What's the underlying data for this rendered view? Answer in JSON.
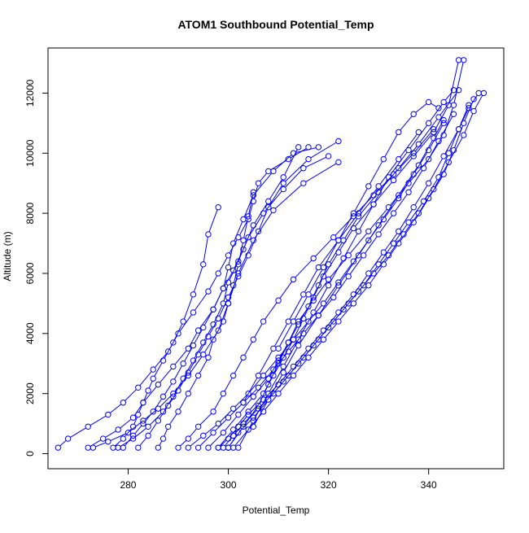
{
  "chart_data": {
    "type": "line",
    "title": "ATOM1 Southbound Potential_Temp",
    "xlabel": "Potential_Temp",
    "ylabel": "Altitude (m)",
    "xlim": [
      264,
      355
    ],
    "ylim": [
      -500,
      13500
    ],
    "x_ticks": [
      280,
      300,
      320,
      340
    ],
    "y_ticks": [
      0,
      2000,
      4000,
      6000,
      8000,
      10000,
      12000
    ],
    "grid": false,
    "legend": "none",
    "marker": "open-circle",
    "color": "#0000ff",
    "series": [
      {
        "x": [
          266,
          268,
          272,
          276,
          279,
          282,
          285,
          288,
          290,
          293,
          296,
          298,
          300,
          302,
          304,
          305,
          306,
          308,
          312,
          316
        ],
        "y": [
          200,
          500,
          900,
          1300,
          1700,
          2200,
          2800,
          3400,
          4000,
          4700,
          5400,
          6000,
          6600,
          7200,
          7800,
          8400,
          9000,
          9400,
          9800,
          10200
        ]
      },
      {
        "x": [
          272,
          275,
          278,
          281,
          283,
          286,
          289,
          292,
          294,
          297,
          299,
          301,
          303,
          305,
          308,
          311,
          314
        ],
        "y": [
          200,
          500,
          800,
          1200,
          1700,
          2300,
          2900,
          3500,
          4100,
          4800,
          5500,
          6100,
          6800,
          7600,
          8400,
          9200,
          10200
        ]
      },
      {
        "x": [
          277,
          279,
          281,
          282,
          283,
          284,
          285,
          287,
          289,
          291,
          293,
          295,
          296,
          298
        ],
        "y": [
          200,
          500,
          900,
          1300,
          1700,
          2100,
          2500,
          3100,
          3700,
          4400,
          5300,
          6300,
          7300,
          8200
        ]
      },
      {
        "x": [
          279,
          281,
          283,
          285,
          287,
          289,
          291,
          293,
          295,
          297,
          299,
          300,
          301,
          303,
          305,
          309,
          313,
          318
        ],
        "y": [
          200,
          600,
          1000,
          1400,
          1900,
          2400,
          3000,
          3600,
          4200,
          4800,
          5500,
          6200,
          7000,
          7800,
          8600,
          9400,
          10000,
          10200
        ]
      },
      {
        "x": [
          282,
          284,
          286,
          288,
          290,
          292,
          294,
          296,
          298,
          300,
          302,
          304,
          306,
          308,
          311,
          316,
          322
        ],
        "y": [
          200,
          600,
          1100,
          1600,
          2100,
          2700,
          3300,
          3900,
          4500,
          5200,
          5900,
          6600,
          7400,
          8200,
          9000,
          9800,
          10400
        ]
      },
      {
        "x": [
          278,
          281,
          284,
          287,
          289,
          291,
          293,
          295,
          297,
          299,
          300,
          302,
          304,
          307,
          311,
          315,
          320
        ],
        "y": [
          200,
          500,
          900,
          1400,
          1900,
          2500,
          3100,
          3700,
          4300,
          5000,
          5700,
          6400,
          7200,
          8000,
          8800,
          9500,
          9900
        ]
      },
      {
        "x": [
          286,
          287,
          288,
          290,
          292,
          294,
          296,
          297,
          299,
          300,
          301,
          302,
          303,
          304,
          305
        ],
        "y": [
          200,
          500,
          900,
          1400,
          2000,
          2600,
          3200,
          3800,
          4400,
          5000,
          5600,
          6300,
          7100,
          7900,
          8700
        ]
      },
      {
        "x": [
          273,
          276,
          280,
          283,
          286,
          289,
          292,
          295,
          298,
          300,
          302,
          305,
          309,
          315,
          322
        ],
        "y": [
          200,
          400,
          700,
          1100,
          1500,
          2000,
          2600,
          3300,
          4100,
          5000,
          6000,
          7100,
          8100,
          9000,
          9700
        ]
      },
      {
        "x": [
          290,
          292,
          294,
          297,
          299,
          301,
          303,
          305,
          307,
          310,
          313,
          317,
          321,
          325,
          329,
          333,
          337,
          341
        ],
        "y": [
          200,
          500,
          900,
          1400,
          2000,
          2600,
          3200,
          3800,
          4400,
          5100,
          5800,
          6500,
          7200,
          7900,
          8600,
          9300,
          10000,
          10800
        ]
      },
      {
        "x": [
          292,
          295,
          298,
          301,
          304,
          307,
          310,
          313,
          316,
          319,
          322,
          325,
          328,
          331,
          334,
          337,
          340,
          343
        ],
        "y": [
          200,
          600,
          1000,
          1500,
          2000,
          2600,
          3200,
          3800,
          4400,
          5000,
          5700,
          6400,
          7100,
          7800,
          8500,
          9300,
          10100,
          11000
        ]
      },
      {
        "x": [
          294,
          297,
          300,
          303,
          306,
          309,
          312,
          315,
          318,
          321,
          324,
          327,
          330,
          333,
          336,
          339,
          342,
          345
        ],
        "y": [
          200,
          700,
          1200,
          1700,
          2200,
          2800,
          3400,
          4000,
          4600,
          5200,
          5900,
          6600,
          7300,
          8000,
          8700,
          9500,
          10400,
          11300
        ]
      },
      {
        "x": [
          298,
          300,
          302,
          304,
          307,
          310,
          313,
          316,
          319,
          322,
          325,
          328,
          331,
          334,
          337,
          340,
          343,
          346,
          348
        ],
        "y": [
          200,
          500,
          900,
          1300,
          1800,
          2300,
          2900,
          3500,
          4100,
          4700,
          5300,
          6000,
          6700,
          7400,
          8200,
          9000,
          9900,
          10800,
          11600
        ]
      },
      {
        "x": [
          299,
          301,
          303,
          306,
          309,
          312,
          315,
          318,
          321,
          324,
          327,
          330,
          333,
          336,
          339,
          342,
          344,
          346,
          348,
          350
        ],
        "y": [
          200,
          600,
          1000,
          1500,
          2000,
          2600,
          3200,
          3800,
          4400,
          5000,
          5600,
          6300,
          7000,
          7700,
          8400,
          9200,
          10000,
          10800,
          11500,
          12000
        ]
      },
      {
        "x": [
          300,
          302,
          305,
          308,
          311,
          314,
          317,
          320,
          323,
          326,
          329,
          332,
          335,
          338,
          341,
          344,
          347,
          349,
          351
        ],
        "y": [
          200,
          700,
          1200,
          1800,
          2400,
          3000,
          3600,
          4200,
          4800,
          5400,
          6000,
          6600,
          7300,
          8000,
          8800,
          9700,
          10600,
          11400,
          12000
        ]
      },
      {
        "x": [
          301,
          304,
          307,
          310,
          313,
          316,
          319,
          322,
          325,
          328,
          331,
          334,
          337,
          340,
          343,
          345,
          347,
          349
        ],
        "y": [
          200,
          800,
          1400,
          2000,
          2600,
          3200,
          3800,
          4400,
          5000,
          5600,
          6300,
          7000,
          7700,
          8500,
          9300,
          10100,
          11000,
          11800
        ]
      },
      {
        "x": [
          296,
          299,
          302,
          305,
          308,
          310,
          312,
          314,
          316,
          318,
          320,
          323,
          326,
          330,
          334,
          338,
          342,
          346
        ],
        "y": [
          200,
          700,
          1300,
          1900,
          2500,
          3100,
          3700,
          4300,
          4900,
          5600,
          6300,
          7100,
          7900,
          8700,
          9500,
          10300,
          11200,
          12100
        ]
      },
      {
        "x": [
          298,
          301,
          304,
          307,
          309,
          311,
          313,
          315,
          317,
          319,
          322,
          325,
          329,
          333,
          337,
          341,
          344,
          346
        ],
        "y": [
          200,
          800,
          1400,
          2000,
          2600,
          3200,
          3800,
          4500,
          5200,
          5900,
          6700,
          7500,
          8300,
          9100,
          9900,
          10700,
          11600,
          13100
        ]
      },
      {
        "x": [
          300,
          303,
          306,
          308,
          310,
          312,
          314,
          317,
          320,
          324,
          328,
          332,
          336,
          340,
          343,
          345,
          347
        ],
        "y": [
          200,
          900,
          1600,
          2300,
          3000,
          3700,
          4400,
          5100,
          5800,
          6600,
          7400,
          8200,
          9000,
          9800,
          10600,
          11600,
          13100
        ]
      },
      {
        "x": [
          302,
          305,
          308,
          311,
          314,
          317,
          320,
          323,
          326,
          329,
          332,
          336,
          340,
          343,
          345
        ],
        "y": [
          200,
          1100,
          2000,
          2900,
          3800,
          4700,
          5600,
          6500,
          7400,
          8300,
          9200,
          10100,
          11000,
          11700,
          12100
        ]
      },
      {
        "x": [
          305,
          308,
          311,
          314,
          318,
          322,
          326,
          330,
          334,
          338,
          341,
          343
        ],
        "y": [
          900,
          1800,
          2700,
          3600,
          4600,
          5600,
          6600,
          7600,
          8600,
          9600,
          10500,
          11100
        ]
      },
      {
        "x": [
          303,
          306,
          309,
          312,
          315,
          318,
          322,
          326,
          330,
          334,
          338
        ],
        "y": [
          1700,
          2600,
          3500,
          4400,
          5300,
          6200,
          7100,
          8000,
          8900,
          9800,
          10700
        ]
      },
      {
        "x": [
          310,
          313,
          316,
          319,
          322,
          325,
          328,
          331,
          334,
          337,
          340,
          342
        ],
        "y": [
          3500,
          4400,
          5300,
          6200,
          7100,
          8000,
          8900,
          9800,
          10700,
          11300,
          11700,
          11500
        ]
      }
    ]
  }
}
